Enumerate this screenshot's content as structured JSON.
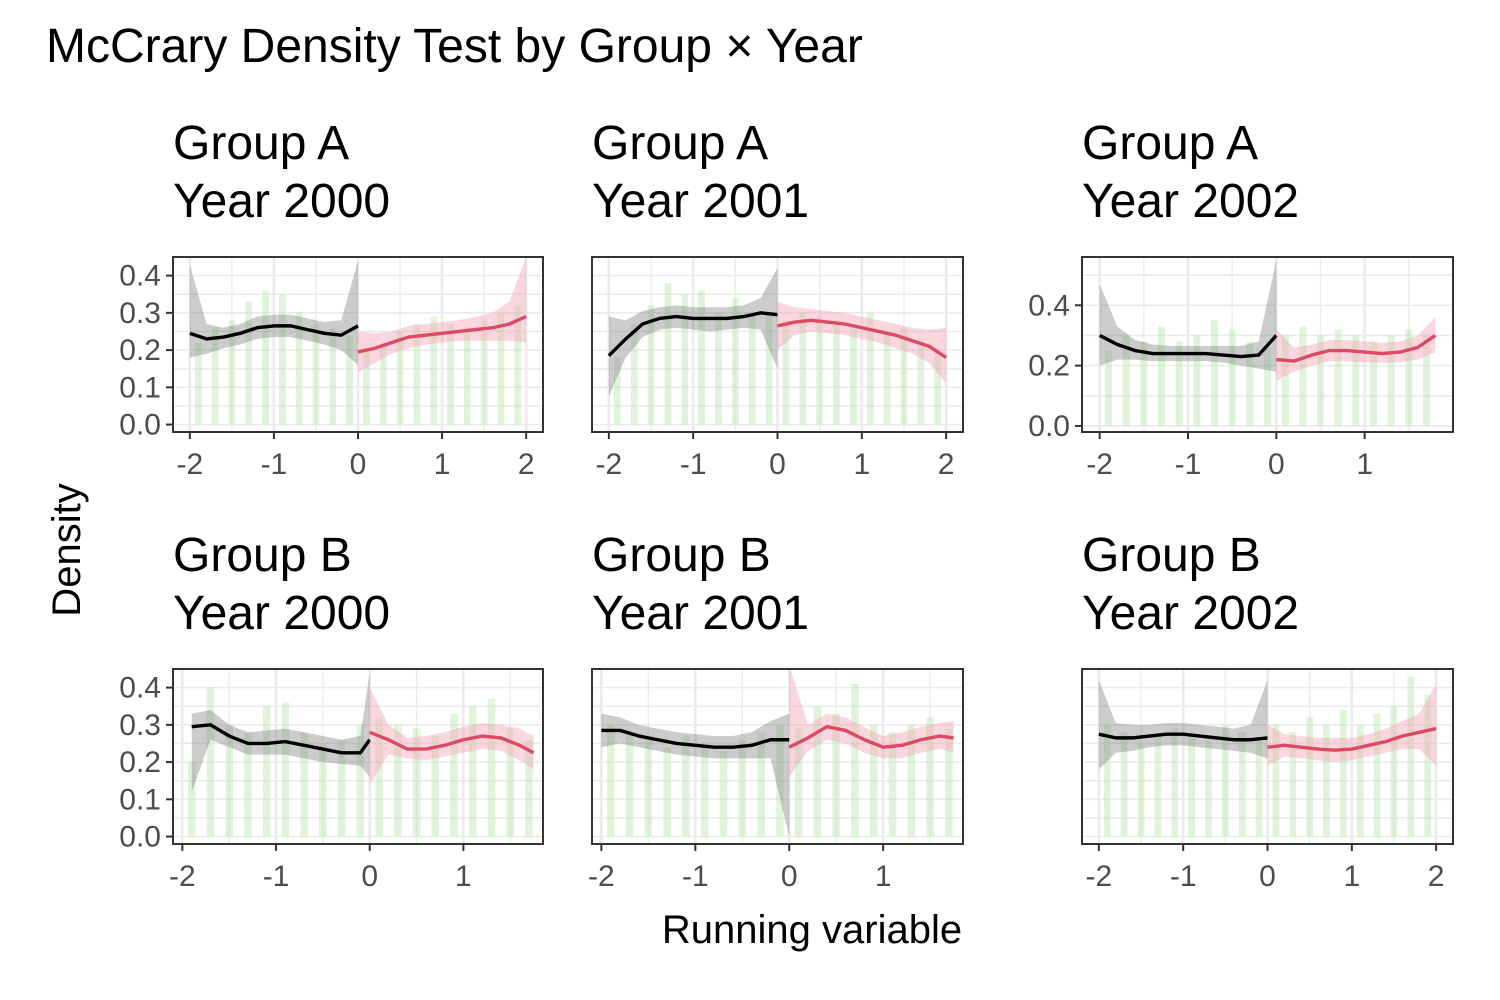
{
  "title": "McCrary Density Test by Group × Year",
  "xlabel": "Running variable",
  "ylabel": "Density",
  "colors": {
    "left_line": "#000000",
    "left_band": "#7f7f7f",
    "right_line": "#dc4a63",
    "right_band": "#f4a7b5",
    "histogram": "#b8e6ae",
    "grid": "#ebebeb",
    "panel_border": "#333333"
  },
  "chart_data": [
    {
      "type": "line",
      "title_lines": [
        "Group A",
        "Year 2000"
      ],
      "xlim": [
        -2.2,
        2.2
      ],
      "ylim": [
        -0.02,
        0.45
      ],
      "xticks": [
        -2,
        -1,
        0,
        1,
        2
      ],
      "yticks": [
        0.0,
        0.1,
        0.2,
        0.3,
        0.4
      ],
      "ytick_labels": [
        "0.0",
        "0.1",
        "0.2",
        "0.3",
        "0.4"
      ],
      "cutoff": 0,
      "left": {
        "x": [
          -2.0,
          -1.8,
          -1.6,
          -1.4,
          -1.2,
          -1.0,
          -0.8,
          -0.6,
          -0.4,
          -0.2,
          0.0
        ],
        "y": [
          0.245,
          0.23,
          0.235,
          0.245,
          0.26,
          0.265,
          0.265,
          0.255,
          0.245,
          0.24,
          0.265
        ],
        "lo": [
          0.18,
          0.19,
          0.205,
          0.215,
          0.23,
          0.235,
          0.235,
          0.225,
          0.215,
          0.2,
          0.16
        ],
        "hi": [
          0.43,
          0.27,
          0.26,
          0.27,
          0.29,
          0.295,
          0.295,
          0.285,
          0.275,
          0.28,
          0.44
        ]
      },
      "right": {
        "x": [
          0.0,
          0.2,
          0.4,
          0.6,
          0.8,
          1.0,
          1.2,
          1.4,
          1.6,
          1.8,
          2.0
        ],
        "y": [
          0.195,
          0.205,
          0.22,
          0.235,
          0.24,
          0.245,
          0.25,
          0.255,
          0.26,
          0.27,
          0.29
        ],
        "lo": [
          0.14,
          0.165,
          0.19,
          0.205,
          0.215,
          0.22,
          0.225,
          0.225,
          0.225,
          0.225,
          0.22
        ],
        "hi": [
          0.25,
          0.245,
          0.25,
          0.265,
          0.27,
          0.275,
          0.28,
          0.29,
          0.3,
          0.33,
          0.45
        ]
      },
      "hist": {
        "x": [
          -1.9,
          -1.7,
          -1.5,
          -1.3,
          -1.1,
          -0.9,
          -0.7,
          -0.5,
          -0.3,
          -0.1,
          0.1,
          0.3,
          0.5,
          0.7,
          0.9,
          1.1,
          1.3,
          1.5,
          1.7,
          1.9
        ],
        "y": [
          0.22,
          0.26,
          0.28,
          0.33,
          0.36,
          0.35,
          0.3,
          0.27,
          0.26,
          0.24,
          0.2,
          0.22,
          0.25,
          0.27,
          0.29,
          0.27,
          0.26,
          0.28,
          0.3,
          0.32
        ]
      }
    },
    {
      "type": "line",
      "title_lines": [
        "Group A",
        "Year 2001"
      ],
      "xlim": [
        -2.2,
        2.2
      ],
      "ylim": [
        -0.02,
        0.45
      ],
      "xticks": [
        -2,
        -1,
        0,
        1,
        2
      ],
      "yticks": [],
      "ytick_labels": [],
      "cutoff": 0,
      "left": {
        "x": [
          -2.0,
          -1.8,
          -1.6,
          -1.4,
          -1.2,
          -1.0,
          -0.8,
          -0.6,
          -0.4,
          -0.2,
          0.0
        ],
        "y": [
          0.185,
          0.23,
          0.27,
          0.285,
          0.29,
          0.285,
          0.285,
          0.285,
          0.29,
          0.3,
          0.295
        ],
        "lo": [
          0.075,
          0.18,
          0.235,
          0.255,
          0.26,
          0.255,
          0.25,
          0.255,
          0.26,
          0.255,
          0.15
        ],
        "hi": [
          0.29,
          0.28,
          0.305,
          0.315,
          0.32,
          0.315,
          0.315,
          0.315,
          0.32,
          0.34,
          0.42
        ]
      },
      "right": {
        "x": [
          0.0,
          0.2,
          0.4,
          0.6,
          0.8,
          1.0,
          1.2,
          1.4,
          1.6,
          1.8,
          2.0
        ],
        "y": [
          0.265,
          0.275,
          0.28,
          0.275,
          0.27,
          0.26,
          0.25,
          0.24,
          0.225,
          0.21,
          0.18
        ],
        "lo": [
          0.2,
          0.24,
          0.25,
          0.245,
          0.24,
          0.23,
          0.22,
          0.205,
          0.19,
          0.165,
          0.11
        ],
        "hi": [
          0.33,
          0.315,
          0.31,
          0.305,
          0.3,
          0.29,
          0.28,
          0.27,
          0.26,
          0.255,
          0.26
        ]
      },
      "hist": {
        "x": [
          -1.9,
          -1.7,
          -1.5,
          -1.3,
          -1.1,
          -0.9,
          -0.7,
          -0.5,
          -0.3,
          -0.1,
          0.1,
          0.3,
          0.5,
          0.7,
          0.9,
          1.1,
          1.3,
          1.5,
          1.7,
          1.9
        ],
        "y": [
          0.18,
          0.27,
          0.32,
          0.38,
          0.35,
          0.36,
          0.3,
          0.34,
          0.3,
          0.3,
          0.28,
          0.3,
          0.29,
          0.28,
          0.27,
          0.3,
          0.25,
          0.26,
          0.23,
          0.2
        ]
      }
    },
    {
      "type": "line",
      "title_lines": [
        "Group A",
        "Year 2002"
      ],
      "xlim": [
        -2.2,
        2.0
      ],
      "ylim": [
        -0.02,
        0.56
      ],
      "xticks": [
        -2,
        -1,
        0,
        1
      ],
      "yticks": [
        0.0,
        0.2,
        0.4
      ],
      "ytick_labels": [
        "0.0",
        "0.2",
        "0.4"
      ],
      "cutoff": 0,
      "left": {
        "x": [
          -2.0,
          -1.8,
          -1.6,
          -1.4,
          -1.2,
          -1.0,
          -0.8,
          -0.6,
          -0.4,
          -0.2,
          0.0
        ],
        "y": [
          0.3,
          0.27,
          0.25,
          0.24,
          0.24,
          0.24,
          0.24,
          0.235,
          0.23,
          0.235,
          0.3
        ],
        "lo": [
          0.2,
          0.22,
          0.22,
          0.215,
          0.215,
          0.215,
          0.215,
          0.21,
          0.2,
          0.19,
          0.18
        ],
        "hi": [
          0.47,
          0.33,
          0.285,
          0.27,
          0.265,
          0.265,
          0.265,
          0.265,
          0.265,
          0.28,
          0.55
        ]
      },
      "right": {
        "x": [
          0.0,
          0.2,
          0.4,
          0.6,
          0.8,
          1.0,
          1.2,
          1.4,
          1.6,
          1.8
        ],
        "y": [
          0.22,
          0.215,
          0.235,
          0.25,
          0.25,
          0.245,
          0.24,
          0.245,
          0.26,
          0.3
        ],
        "lo": [
          0.15,
          0.18,
          0.2,
          0.215,
          0.215,
          0.21,
          0.21,
          0.21,
          0.22,
          0.245
        ],
        "hi": [
          0.32,
          0.26,
          0.27,
          0.285,
          0.285,
          0.28,
          0.275,
          0.28,
          0.3,
          0.36
        ]
      },
      "hist": {
        "x": [
          -1.9,
          -1.7,
          -1.5,
          -1.3,
          -1.1,
          -0.9,
          -0.7,
          -0.5,
          -0.3,
          -0.1,
          0.1,
          0.3,
          0.5,
          0.7,
          0.9,
          1.1,
          1.3,
          1.5,
          1.7
        ],
        "y": [
          0.25,
          0.3,
          0.28,
          0.33,
          0.28,
          0.3,
          0.35,
          0.32,
          0.28,
          0.26,
          0.3,
          0.33,
          0.3,
          0.32,
          0.3,
          0.28,
          0.3,
          0.32,
          0.3
        ]
      }
    },
    {
      "type": "line",
      "title_lines": [
        "Group B",
        "Year 2000"
      ],
      "xlim": [
        -2.1,
        1.85
      ],
      "ylim": [
        -0.02,
        0.45
      ],
      "xticks": [
        -2,
        -1,
        0,
        1
      ],
      "yticks": [
        0.0,
        0.1,
        0.2,
        0.3,
        0.4
      ],
      "ytick_labels": [
        "0.0",
        "0.1",
        "0.2",
        "0.3",
        "0.4"
      ],
      "cutoff": 0,
      "left": {
        "x": [
          -1.9,
          -1.7,
          -1.5,
          -1.3,
          -1.1,
          -0.9,
          -0.7,
          -0.5,
          -0.3,
          -0.1,
          0.0
        ],
        "y": [
          0.295,
          0.3,
          0.27,
          0.25,
          0.25,
          0.255,
          0.245,
          0.235,
          0.225,
          0.225,
          0.26
        ],
        "lo": [
          0.12,
          0.26,
          0.24,
          0.22,
          0.22,
          0.22,
          0.21,
          0.2,
          0.195,
          0.19,
          0.16
        ],
        "hi": [
          0.33,
          0.34,
          0.3,
          0.28,
          0.285,
          0.29,
          0.28,
          0.27,
          0.26,
          0.27,
          0.44
        ]
      },
      "right": {
        "x": [
          0.0,
          0.2,
          0.4,
          0.6,
          0.8,
          1.0,
          1.2,
          1.4,
          1.6,
          1.75
        ],
        "y": [
          0.28,
          0.26,
          0.235,
          0.235,
          0.245,
          0.26,
          0.27,
          0.265,
          0.245,
          0.225
        ],
        "lo": [
          0.14,
          0.22,
          0.21,
          0.205,
          0.215,
          0.225,
          0.235,
          0.23,
          0.205,
          0.18
        ],
        "hi": [
          0.4,
          0.3,
          0.265,
          0.27,
          0.28,
          0.295,
          0.305,
          0.3,
          0.29,
          0.27
        ]
      },
      "hist": {
        "x": [
          -1.9,
          -1.7,
          -1.5,
          -1.3,
          -1.1,
          -0.9,
          -0.7,
          -0.5,
          -0.3,
          -0.1,
          0.1,
          0.3,
          0.5,
          0.7,
          0.9,
          1.1,
          1.3,
          1.5,
          1.7
        ],
        "y": [
          0.2,
          0.4,
          0.3,
          0.28,
          0.35,
          0.36,
          0.28,
          0.25,
          0.26,
          0.3,
          0.32,
          0.3,
          0.29,
          0.27,
          0.33,
          0.35,
          0.37,
          0.29,
          0.26
        ]
      }
    },
    {
      "type": "line",
      "title_lines": [
        "Group B",
        "Year 2001"
      ],
      "xlim": [
        -2.1,
        1.85
      ],
      "ylim": [
        -0.02,
        0.45
      ],
      "xticks": [
        -2,
        -1,
        0,
        1
      ],
      "yticks": [],
      "ytick_labels": [],
      "cutoff": 0,
      "left": {
        "x": [
          -2.0,
          -1.8,
          -1.6,
          -1.4,
          -1.2,
          -1.0,
          -0.8,
          -0.6,
          -0.4,
          -0.2,
          0.0
        ],
        "y": [
          0.285,
          0.285,
          0.27,
          0.26,
          0.25,
          0.245,
          0.24,
          0.24,
          0.245,
          0.26,
          0.26
        ],
        "lo": [
          0.24,
          0.25,
          0.24,
          0.23,
          0.22,
          0.215,
          0.21,
          0.21,
          0.21,
          0.21,
          0.0
        ],
        "hi": [
          0.33,
          0.32,
          0.3,
          0.29,
          0.28,
          0.275,
          0.27,
          0.27,
          0.28,
          0.31,
          0.33
        ]
      },
      "right": {
        "x": [
          0.0,
          0.2,
          0.4,
          0.6,
          0.8,
          1.0,
          1.2,
          1.4,
          1.6,
          1.75
        ],
        "y": [
          0.24,
          0.265,
          0.295,
          0.285,
          0.26,
          0.24,
          0.245,
          0.26,
          0.27,
          0.265
        ],
        "lo": [
          0.16,
          0.23,
          0.26,
          0.25,
          0.225,
          0.21,
          0.21,
          0.225,
          0.235,
          0.225
        ],
        "hi": [
          0.46,
          0.3,
          0.33,
          0.32,
          0.295,
          0.27,
          0.28,
          0.295,
          0.305,
          0.31
        ]
      },
      "hist": {
        "x": [
          -1.9,
          -1.7,
          -1.5,
          -1.3,
          -1.1,
          -0.9,
          -0.7,
          -0.5,
          -0.3,
          -0.1,
          0.1,
          0.3,
          0.5,
          0.7,
          0.9,
          1.1,
          1.3,
          1.5,
          1.7
        ],
        "y": [
          0.3,
          0.28,
          0.26,
          0.24,
          0.27,
          0.25,
          0.23,
          0.26,
          0.28,
          0.3,
          0.29,
          0.35,
          0.33,
          0.41,
          0.3,
          0.28,
          0.3,
          0.32,
          0.29
        ]
      }
    },
    {
      "type": "line",
      "title_lines": [
        "Group B",
        "Year 2002"
      ],
      "xlim": [
        -2.2,
        2.2
      ],
      "ylim": [
        -0.02,
        0.45
      ],
      "xticks": [
        -2,
        -1,
        0,
        1,
        2
      ],
      "yticks": [],
      "ytick_labels": [],
      "cutoff": 0,
      "left": {
        "x": [
          -2.0,
          -1.8,
          -1.6,
          -1.4,
          -1.2,
          -1.0,
          -0.8,
          -0.6,
          -0.4,
          -0.2,
          0.0
        ],
        "y": [
          0.275,
          0.265,
          0.265,
          0.27,
          0.275,
          0.275,
          0.27,
          0.265,
          0.26,
          0.26,
          0.265
        ],
        "lo": [
          0.18,
          0.225,
          0.23,
          0.24,
          0.245,
          0.245,
          0.24,
          0.235,
          0.23,
          0.225,
          0.21
        ],
        "hi": [
          0.42,
          0.305,
          0.3,
          0.3,
          0.305,
          0.305,
          0.3,
          0.295,
          0.29,
          0.3,
          0.42
        ]
      },
      "right": {
        "x": [
          0.0,
          0.2,
          0.4,
          0.6,
          0.8,
          1.0,
          1.2,
          1.4,
          1.6,
          1.8,
          2.0
        ],
        "y": [
          0.24,
          0.245,
          0.24,
          0.235,
          0.232,
          0.235,
          0.245,
          0.255,
          0.27,
          0.28,
          0.29
        ],
        "lo": [
          0.19,
          0.215,
          0.21,
          0.205,
          0.2,
          0.205,
          0.215,
          0.225,
          0.235,
          0.235,
          0.19
        ],
        "hi": [
          0.3,
          0.275,
          0.27,
          0.265,
          0.265,
          0.265,
          0.275,
          0.29,
          0.31,
          0.33,
          0.41
        ]
      },
      "hist": {
        "x": [
          -1.9,
          -1.7,
          -1.5,
          -1.3,
          -1.1,
          -0.9,
          -0.7,
          -0.5,
          -0.3,
          -0.1,
          0.1,
          0.3,
          0.5,
          0.7,
          0.9,
          1.1,
          1.3,
          1.5,
          1.7,
          1.9
        ],
        "y": [
          0.3,
          0.28,
          0.25,
          0.27,
          0.29,
          0.27,
          0.26,
          0.3,
          0.28,
          0.26,
          0.3,
          0.28,
          0.32,
          0.3,
          0.34,
          0.3,
          0.33,
          0.35,
          0.43,
          0.38
        ]
      }
    }
  ]
}
